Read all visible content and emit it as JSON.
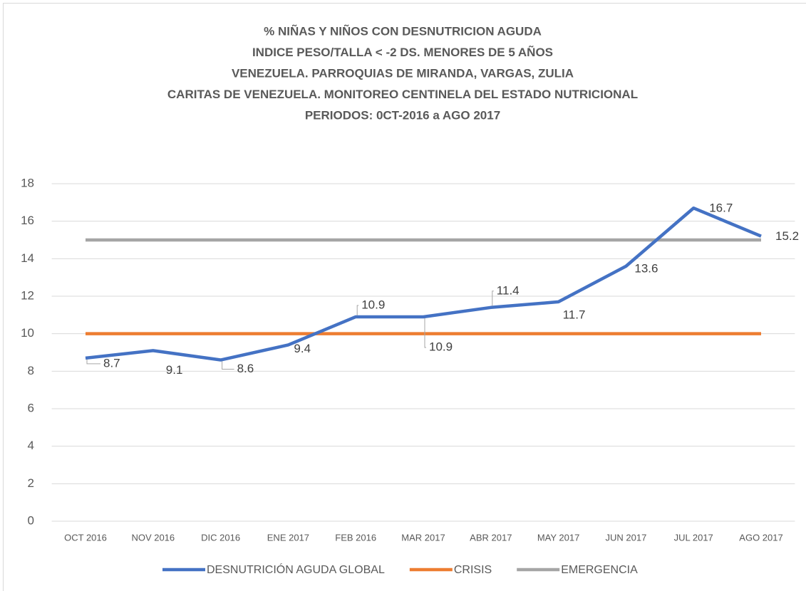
{
  "chart_data": {
    "type": "line",
    "title": [
      "% NIÑAS Y NIÑOS CON DESNUTRICION AGUDA",
      "INDICE PESO/TALLA < -2 DS. MENORES DE 5 AÑOS",
      "VENEZUELA. PARROQUIAS DE MIRANDA, VARGAS, ZULIA",
      "CARITAS DE VENEZUELA. MONITOREO CENTINELA DEL ESTADO NUTRICIONAL",
      "PERIODOS: 0CT-2016 a AGO 2017"
    ],
    "categories": [
      "OCT 2016",
      "NOV 2016",
      "DIC 2016",
      "ENE 2017",
      "FEB 2016",
      "MAR 2017",
      "ABR 2017",
      "MAY 2017",
      "JUN 2017",
      "JUL 2017",
      "AGO 2017"
    ],
    "series": [
      {
        "name": "DESNUTRICIÓN AGUDA GLOBAL",
        "color": "#4472c4",
        "values": [
          8.7,
          9.1,
          8.6,
          9.4,
          10.9,
          10.9,
          11.4,
          11.7,
          13.6,
          16.7,
          15.2
        ],
        "data_labels": true
      },
      {
        "name": "CRISIS",
        "color": "#ed7d31",
        "values": [
          10,
          10,
          10,
          10,
          10,
          10,
          10,
          10,
          10,
          10,
          10
        ]
      },
      {
        "name": "EMERGENCIA",
        "color": "#a5a5a5",
        "values": [
          15,
          15,
          15,
          15,
          15,
          15,
          15,
          15,
          15,
          15,
          15
        ]
      }
    ],
    "ylim": [
      0,
      18
    ],
    "yticks": [
      0,
      2,
      4,
      6,
      8,
      10,
      12,
      14,
      16,
      18
    ],
    "grid": true,
    "legend": "bottom"
  }
}
